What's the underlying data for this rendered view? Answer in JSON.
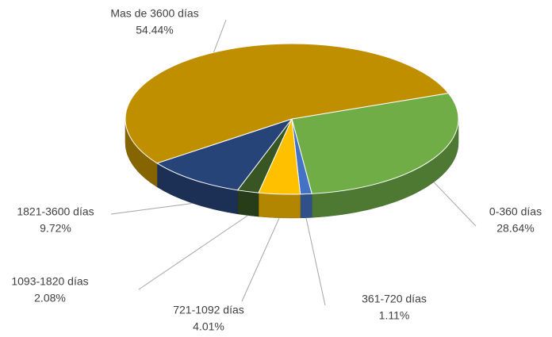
{
  "chart_data": {
    "type": "pie3d",
    "categories": [
      "0-360 días",
      "361-720 días",
      "721-1092 días",
      "1093-1820 días",
      "1821-3600 días",
      "Mas de 3600 días"
    ],
    "values": [
      28.64,
      1.11,
      4.01,
      2.08,
      9.72,
      54.44
    ],
    "value_labels": [
      "28.64%",
      "1.11%",
      "4.01%",
      "2.08%",
      "9.72%",
      "54.44%"
    ],
    "colors": [
      "#70ad47",
      "#4472c4",
      "#ffc000",
      "#375623",
      "#264478",
      "#bf8f00"
    ]
  }
}
